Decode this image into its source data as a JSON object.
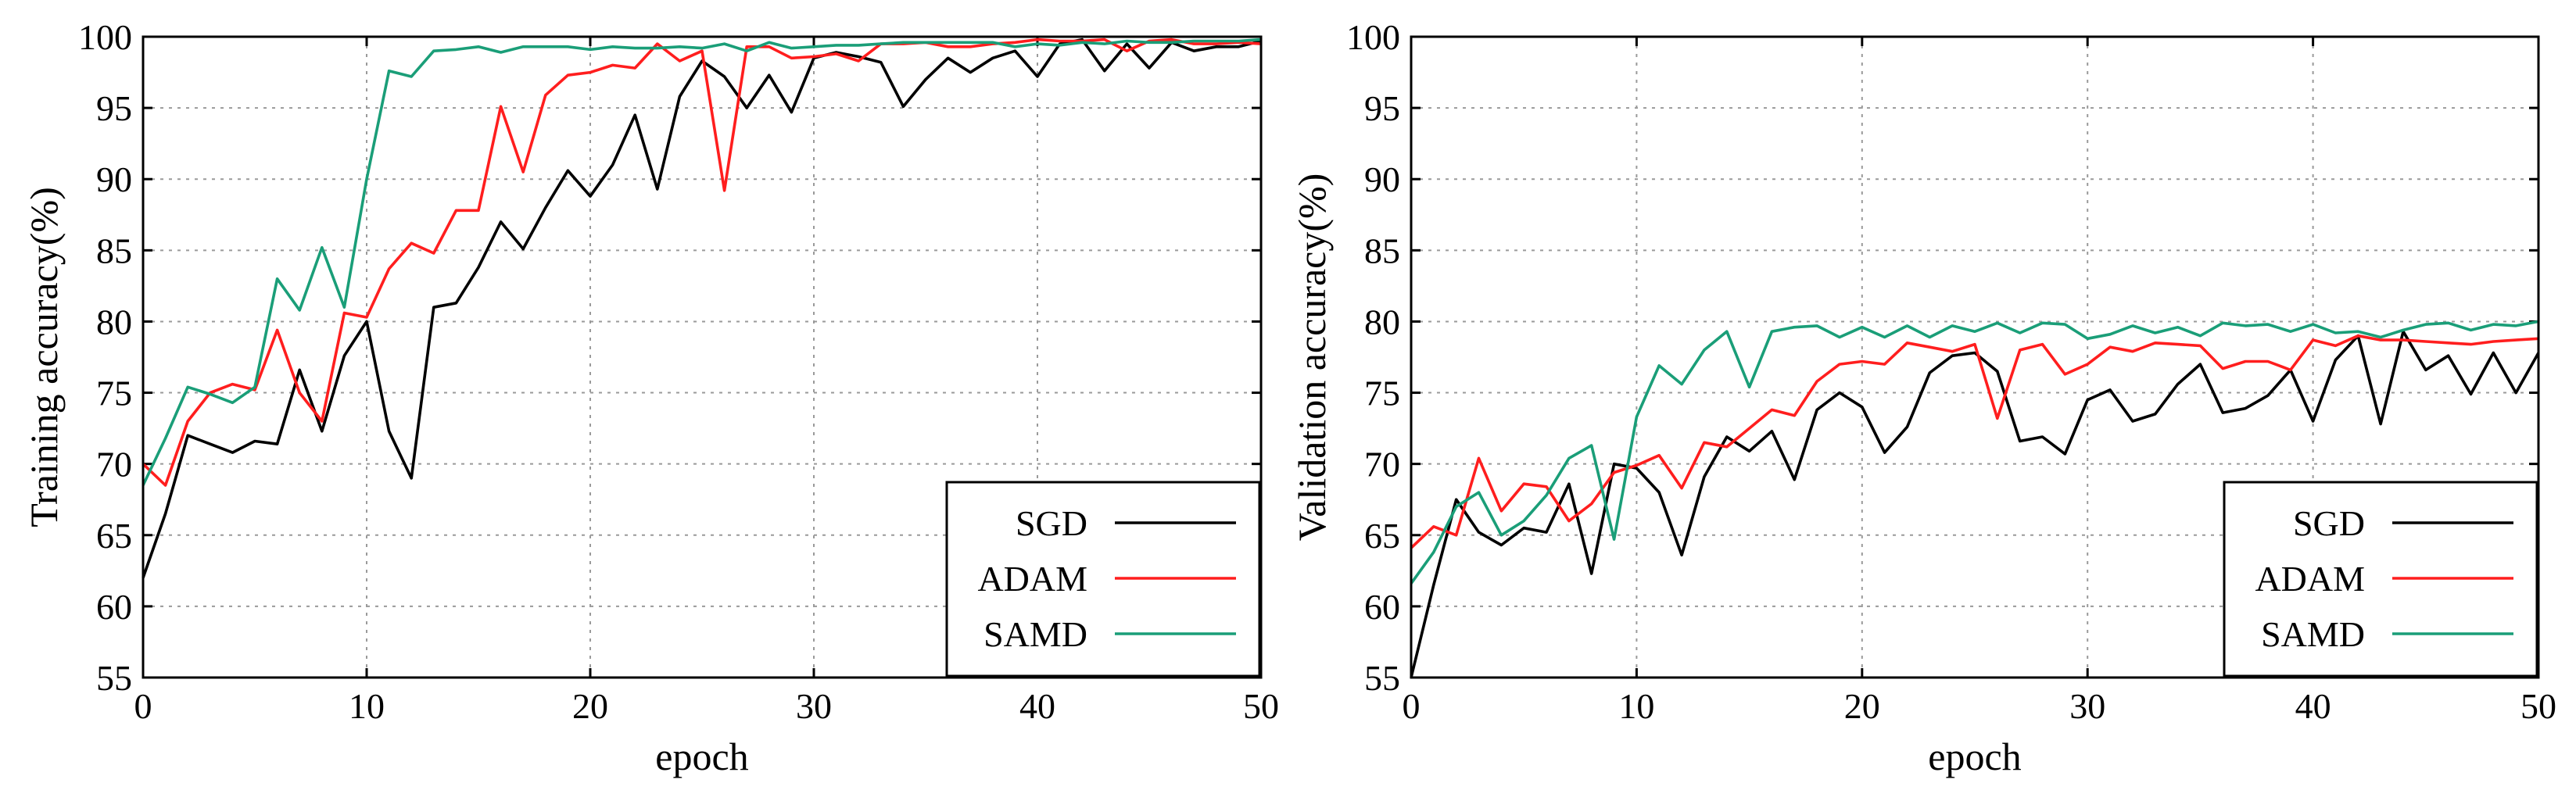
{
  "chart_data": [
    {
      "type": "line",
      "xlabel": "epoch",
      "ylabel": "Training accuracy(%)",
      "xlim": [
        0,
        50
      ],
      "ylim": [
        55,
        100
      ],
      "xticks": [
        0,
        10,
        20,
        30,
        40,
        50
      ],
      "yticks": [
        55,
        60,
        65,
        70,
        75,
        80,
        85,
        90,
        95,
        100
      ],
      "grid": true,
      "legend_position": "bottom-right",
      "series": [
        {
          "name": "SGD",
          "color": "#000000",
          "values": [
            62.0,
            66.5,
            72.0,
            71.4,
            70.8,
            71.6,
            71.4,
            76.6,
            72.3,
            77.6,
            80.0,
            72.3,
            69.0,
            81.0,
            81.3,
            83.8,
            87.0,
            85.1,
            88.0,
            90.6,
            88.8,
            91.0,
            94.5,
            89.3,
            95.8,
            98.3,
            97.2,
            95.0,
            97.3,
            94.7,
            98.5,
            98.9,
            98.6,
            98.2,
            95.1,
            97.0,
            98.5,
            97.5,
            98.5,
            99.0,
            97.2,
            99.5,
            99.8,
            97.6,
            99.5,
            97.8,
            99.6,
            99.0,
            99.3,
            99.3,
            99.7
          ]
        },
        {
          "name": "ADAM",
          "color": "#ff1e1e",
          "values": [
            70.0,
            68.5,
            73.0,
            75.0,
            75.6,
            75.2,
            79.4,
            75.0,
            73.0,
            80.6,
            80.3,
            83.7,
            85.5,
            84.8,
            87.8,
            87.8,
            95.1,
            90.5,
            95.9,
            97.3,
            97.5,
            98.0,
            97.8,
            99.5,
            98.3,
            99.0,
            89.2,
            99.3,
            99.3,
            98.5,
            98.6,
            98.8,
            98.3,
            99.5,
            99.5,
            99.6,
            99.3,
            99.3,
            99.5,
            99.6,
            99.8,
            99.7,
            99.7,
            99.8,
            99.0,
            99.7,
            99.8,
            99.5,
            99.5,
            99.6,
            99.5
          ]
        },
        {
          "name": "SAMD",
          "color": "#1a9e78",
          "values": [
            68.5,
            71.8,
            75.4,
            74.9,
            74.3,
            75.4,
            83.0,
            80.8,
            85.2,
            81.0,
            90.0,
            97.6,
            97.2,
            99.0,
            99.1,
            99.3,
            98.9,
            99.3,
            99.3,
            99.3,
            99.1,
            99.3,
            99.2,
            99.2,
            99.3,
            99.2,
            99.5,
            99.0,
            99.6,
            99.2,
            99.3,
            99.4,
            99.4,
            99.5,
            99.6,
            99.6,
            99.6,
            99.6,
            99.6,
            99.3,
            99.5,
            99.4,
            99.6,
            99.5,
            99.7,
            99.6,
            99.6,
            99.7,
            99.7,
            99.7,
            99.8
          ]
        }
      ]
    },
    {
      "type": "line",
      "xlabel": "epoch",
      "ylabel": "Validation accuracy(%)",
      "xlim": [
        0,
        50
      ],
      "ylim": [
        55,
        100
      ],
      "xticks": [
        0,
        10,
        20,
        30,
        40,
        50
      ],
      "yticks": [
        55,
        60,
        65,
        70,
        75,
        80,
        85,
        90,
        95,
        100
      ],
      "grid": true,
      "legend_position": "bottom-right",
      "series": [
        {
          "name": "SGD",
          "color": "#000000",
          "values": [
            55.0,
            61.5,
            67.5,
            65.2,
            64.3,
            65.5,
            65.2,
            68.6,
            62.3,
            70.0,
            69.7,
            68.0,
            63.6,
            69.1,
            71.9,
            70.9,
            72.3,
            68.9,
            73.8,
            75.0,
            74.0,
            70.8,
            72.6,
            76.4,
            77.6,
            77.8,
            76.5,
            71.6,
            71.9,
            70.7,
            74.5,
            75.2,
            73.0,
            73.5,
            75.6,
            77.0,
            73.6,
            73.9,
            74.8,
            76.6,
            73.0,
            77.3,
            79.0,
            72.8,
            79.3,
            76.6,
            77.6,
            74.9,
            77.8,
            75.0,
            77.8
          ]
        },
        {
          "name": "ADAM",
          "color": "#ff1e1e",
          "values": [
            64.1,
            65.6,
            65.0,
            70.4,
            66.7,
            68.6,
            68.4,
            66.0,
            67.2,
            69.4,
            69.9,
            70.6,
            68.3,
            71.5,
            71.2,
            72.5,
            73.8,
            73.4,
            75.8,
            77.0,
            77.2,
            77.0,
            78.5,
            78.2,
            77.9,
            78.4,
            73.2,
            78.0,
            78.4,
            76.3,
            77.0,
            78.2,
            77.9,
            78.5,
            78.4,
            78.3,
            76.7,
            77.2,
            77.2,
            76.6,
            78.7,
            78.3,
            79.0,
            78.7,
            78.7,
            78.6,
            78.5,
            78.4,
            78.6,
            78.7,
            78.8
          ]
        },
        {
          "name": "SAMD",
          "color": "#1a9e78",
          "values": [
            61.6,
            63.8,
            67.0,
            68.0,
            65.0,
            66.0,
            67.8,
            70.4,
            71.3,
            64.7,
            73.3,
            76.9,
            75.6,
            78.0,
            79.3,
            75.4,
            79.3,
            79.6,
            79.7,
            78.9,
            79.6,
            78.9,
            79.7,
            78.9,
            79.7,
            79.3,
            79.9,
            79.2,
            79.9,
            79.8,
            78.8,
            79.1,
            79.7,
            79.2,
            79.6,
            79.0,
            79.9,
            79.7,
            79.8,
            79.3,
            79.8,
            79.2,
            79.3,
            78.9,
            79.4,
            79.8,
            79.9,
            79.4,
            79.8,
            79.7,
            80.0
          ]
        }
      ]
    }
  ]
}
